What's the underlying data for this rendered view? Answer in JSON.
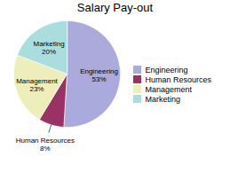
{
  "chart_data": {
    "type": "pie",
    "title": "Salary Pay-out",
    "categories": [
      "Engineering",
      "Human Resources",
      "Management",
      "Marketing"
    ],
    "values": [
      53,
      8,
      23,
      20
    ],
    "value_labels": [
      "53%",
      "8%",
      "23%",
      "20%"
    ],
    "colors": [
      "#aaaadd",
      "#993366",
      "#eeeebb",
      "#aadddd"
    ],
    "data_labels": true,
    "legend": "right"
  }
}
